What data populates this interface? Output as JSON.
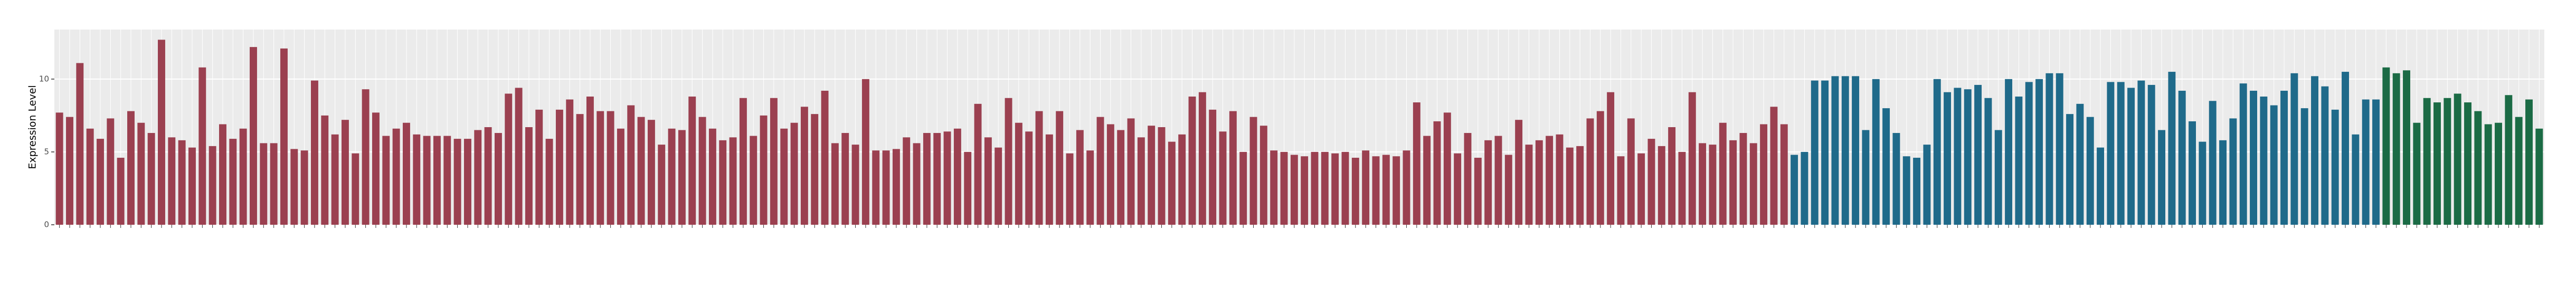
{
  "chart_data": {
    "type": "bar",
    "y_label": "Expression Level",
    "ylim": [
      0,
      13.4
    ],
    "yticks": [
      0,
      5,
      10
    ],
    "grid": true,
    "series": [
      {
        "color": "#9b4050",
        "values": [
          7.7,
          7.4,
          11.1,
          6.6,
          5.9,
          7.3,
          4.6,
          7.8,
          7.0,
          6.3,
          12.7,
          6.0,
          5.8,
          5.3,
          10.8,
          5.4,
          6.9,
          5.9,
          6.6,
          12.2,
          5.6,
          5.6,
          12.1,
          5.2,
          5.1,
          9.9,
          7.5,
          6.2,
          7.2,
          4.9,
          9.3,
          7.7,
          6.1,
          6.6,
          7.0,
          6.2,
          6.1,
          6.1,
          6.1,
          5.9,
          5.9,
          6.5,
          6.7,
          6.3,
          9.0,
          9.4,
          6.7,
          7.9,
          5.9,
          7.9,
          8.6,
          7.6,
          8.8,
          7.8,
          7.8,
          6.6,
          8.2,
          7.4,
          7.2,
          5.5,
          6.6,
          6.5,
          8.8,
          7.4,
          6.6,
          5.8,
          6.0,
          8.7,
          6.1,
          7.5,
          8.7,
          6.6,
          7.0,
          8.1,
          7.6,
          9.2,
          5.6,
          6.3,
          5.5,
          10.0,
          5.1,
          5.1,
          5.2,
          6.0,
          5.6,
          6.3,
          6.3,
          6.4,
          6.6,
          5.0,
          8.3,
          6.0,
          5.3,
          8.7,
          7.0,
          6.4,
          7.8,
          6.2,
          7.8,
          4.9,
          6.5,
          5.1,
          7.4,
          6.9,
          6.5,
          7.3,
          6.0,
          6.8,
          6.7,
          5.7,
          6.2,
          8.8,
          9.1,
          7.9,
          6.4,
          7.8,
          5.0,
          7.4,
          6.8,
          5.1,
          5.0,
          4.8,
          4.7,
          5.0,
          5.0,
          4.9,
          5.0,
          4.6,
          5.1,
          4.7,
          4.8,
          4.7,
          5.1,
          8.4,
          6.1,
          7.1,
          7.7,
          4.9,
          6.3,
          4.6,
          5.8,
          6.1,
          4.8,
          7.2,
          5.5,
          5.8,
          6.1,
          6.2,
          5.3,
          5.4,
          7.3,
          7.8,
          9.1,
          4.7,
          7.3,
          4.9,
          5.9,
          5.4,
          6.7,
          5.0,
          9.1,
          5.6,
          5.5,
          7.0,
          5.8,
          6.3,
          5.6,
          6.9,
          8.1,
          6.9
        ]
      },
      {
        "color": "#1f6a8a",
        "values": [
          4.8,
          5.0,
          9.9,
          9.9,
          10.2,
          10.2,
          10.2,
          6.5,
          10.0,
          8.0,
          6.3,
          4.7,
          4.6,
          5.5,
          10.0,
          9.1,
          9.4,
          9.3,
          9.6,
          8.7,
          6.5,
          10.0,
          8.8,
          9.8,
          10.0,
          10.4,
          10.4,
          7.6,
          8.3,
          7.4,
          5.3,
          9.8,
          9.8,
          9.4,
          9.9,
          9.6,
          6.5,
          10.5,
          9.2,
          7.1,
          5.7,
          8.5,
          5.8,
          7.3,
          9.7,
          9.2,
          8.8,
          8.2,
          9.2,
          10.4,
          8.0,
          10.2,
          9.5,
          7.9,
          10.5,
          6.2,
          8.6,
          8.6
        ]
      },
      {
        "color": "#1b6b45",
        "values": [
          10.8,
          10.4,
          10.6,
          7.0,
          8.7,
          8.4,
          8.7,
          9.0,
          8.4,
          7.8,
          6.9,
          7.0,
          8.9,
          7.4,
          8.6,
          6.6
        ]
      }
    ]
  }
}
